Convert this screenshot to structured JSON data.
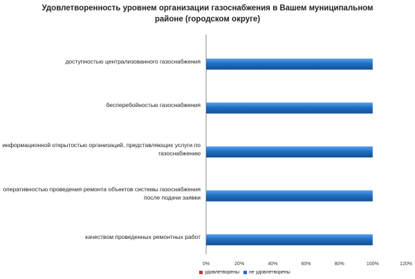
{
  "chart_data": {
    "type": "bar",
    "orientation": "horizontal",
    "stacked": true,
    "title": "Удовлетворенность уровнем организации газоснабжения в Вашем муниципальном районе (городском округе)",
    "categories": [
      "доступностью централизованного газоснабжения",
      "бесперебойностью газоснабжения",
      "информационной открытостью организаций, представляющих услуги по газоснабжению",
      "оперативностью проведения ремонта объектов системы газоснабжения после подачи заявки",
      "качеством проведенных ремонтных работ"
    ],
    "series": [
      {
        "name": "удовлетворены",
        "values": [
          0,
          0,
          0,
          0,
          0
        ],
        "color": "#c0392b"
      },
      {
        "name": "не удовлетворены",
        "values": [
          100,
          100,
          100,
          100,
          100
        ],
        "color": "#1f6fc5"
      }
    ],
    "xlim": [
      0,
      120
    ],
    "xticks": [
      "0%",
      "20%",
      "40%",
      "60%",
      "80%",
      "100%",
      "120%"
    ],
    "grid": false,
    "legend_position": "bottom"
  }
}
